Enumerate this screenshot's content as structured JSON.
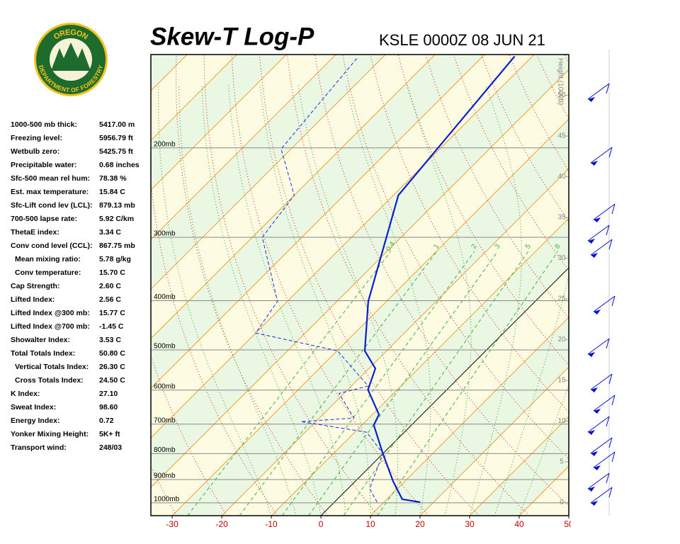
{
  "logo": {
    "top": "OREGON",
    "bottom": "DEPARTMENT OF FORESTRY"
  },
  "indices": [
    {
      "label": "1000-500 mb thick:",
      "value": "5417.00 m"
    },
    {
      "label": "Freezing level:",
      "value": "5956.79 ft"
    },
    {
      "label": "Wetbulb zero:",
      "value": "5425.75 ft"
    },
    {
      "label": "Precipitable water:",
      "value": "0.68 inches"
    },
    {
      "label": "Sfc-500 mean rel hum:",
      "value": "78.38 %"
    },
    {
      "label": "Est. max temperature:",
      "value": "15.84 C"
    },
    {
      "label": "Sfc-Lift cond lev (LCL):",
      "value": "879.13 mb"
    },
    {
      "label": "700-500 lapse rate:",
      "value": "5.92 C/km"
    },
    {
      "label": "ThetaE index:",
      "value": "3.34 C"
    },
    {
      "label": "Conv cond level (CCL):",
      "value": "867.75 mb"
    },
    {
      "label": "Mean mixing ratio:",
      "value": "5.78 g/kg"
    },
    {
      "label": "Conv temperature:",
      "value": "15.70 C"
    },
    {
      "label": "Cap Strength:",
      "value": "2.60 C"
    },
    {
      "label": "Lifted Index:",
      "value": "2.56 C"
    },
    {
      "label": "Lifted Index @300 mb:",
      "value": "15.77 C"
    },
    {
      "label": "Lifted Index @700 mb:",
      "value": "-1.45 C"
    },
    {
      "label": "Showalter Index:",
      "value": "3.53 C"
    },
    {
      "label": "Total Totals Index:",
      "value": "50.80 C"
    },
    {
      "label": "Vertical Totals Index:",
      "value": "26.30 C"
    },
    {
      "label": "Cross Totals Index:",
      "value": "24.50 C"
    },
    {
      "label": "K Index:",
      "value": "27.10"
    },
    {
      "label": "Sweat Index:",
      "value": "98.60"
    },
    {
      "label": "Energy Index:",
      "value": "0.72"
    },
    {
      "label": "Yonker Mixing Height:",
      "value": "5K+ ft"
    },
    {
      "label": "Transport wind:",
      "value": "248/03"
    }
  ],
  "chart_data": {
    "type": "skewt",
    "title": "Skew-T Log-P",
    "subtitle": "KSLE 0000Z 08 JUN 21",
    "y2label": "Height (1000ft)",
    "xlim": [
      -34.3,
      50
    ],
    "xticks": [
      -30,
      -20,
      -10,
      0,
      10,
      20,
      30,
      40,
      50
    ],
    "ylim": [
      1060,
      131
    ],
    "log_y": true,
    "yticks": [
      {
        "value": 1000,
        "label": "1000mb"
      },
      {
        "value": 900,
        "label": "900mb"
      },
      {
        "value": 800,
        "label": "800mb"
      },
      {
        "value": 700,
        "label": "700mb"
      },
      {
        "value": 600,
        "label": "600mb"
      },
      {
        "value": 500,
        "label": "500mb"
      },
      {
        "value": 400,
        "label": "400mb"
      },
      {
        "value": 300,
        "label": "300mb"
      },
      {
        "value": 200,
        "label": "200mb"
      }
    ],
    "y2lim": [
      -1.6,
      55
    ],
    "y2ticks": [
      0,
      5,
      10,
      15,
      20,
      25,
      30,
      35,
      40,
      45,
      50
    ],
    "mixing_ratios": [
      0.4,
      1,
      2,
      3,
      5,
      8
    ],
    "series": [
      {
        "name": "Temperature",
        "color": "#0a1ed2",
        "pressure": [
          997,
          984,
          908,
          799,
          703,
          670,
          599,
          544,
          502,
          401,
          248,
          132
        ],
        "values": [
          17.3,
          13.1,
          7.7,
          -0.1,
          -7.6,
          -8.7,
          -15.9,
          -18.7,
          -24.4,
          -33.7,
          -49,
          -53.6
        ]
      },
      {
        "name": "Dewpoint",
        "color": "#1a2ee0",
        "pressure": [
          997,
          938,
          799,
          726,
          692,
          681,
          609,
          589,
          502,
          463,
          401,
          300,
          248,
          201,
          133
        ],
        "values": [
          8.6,
          4.4,
          -0.1,
          -7.6,
          -23,
          -13,
          -21,
          -16.6,
          -29.9,
          -50,
          -52,
          -68,
          -70,
          -82,
          -85
        ]
      }
    ]
  }
}
